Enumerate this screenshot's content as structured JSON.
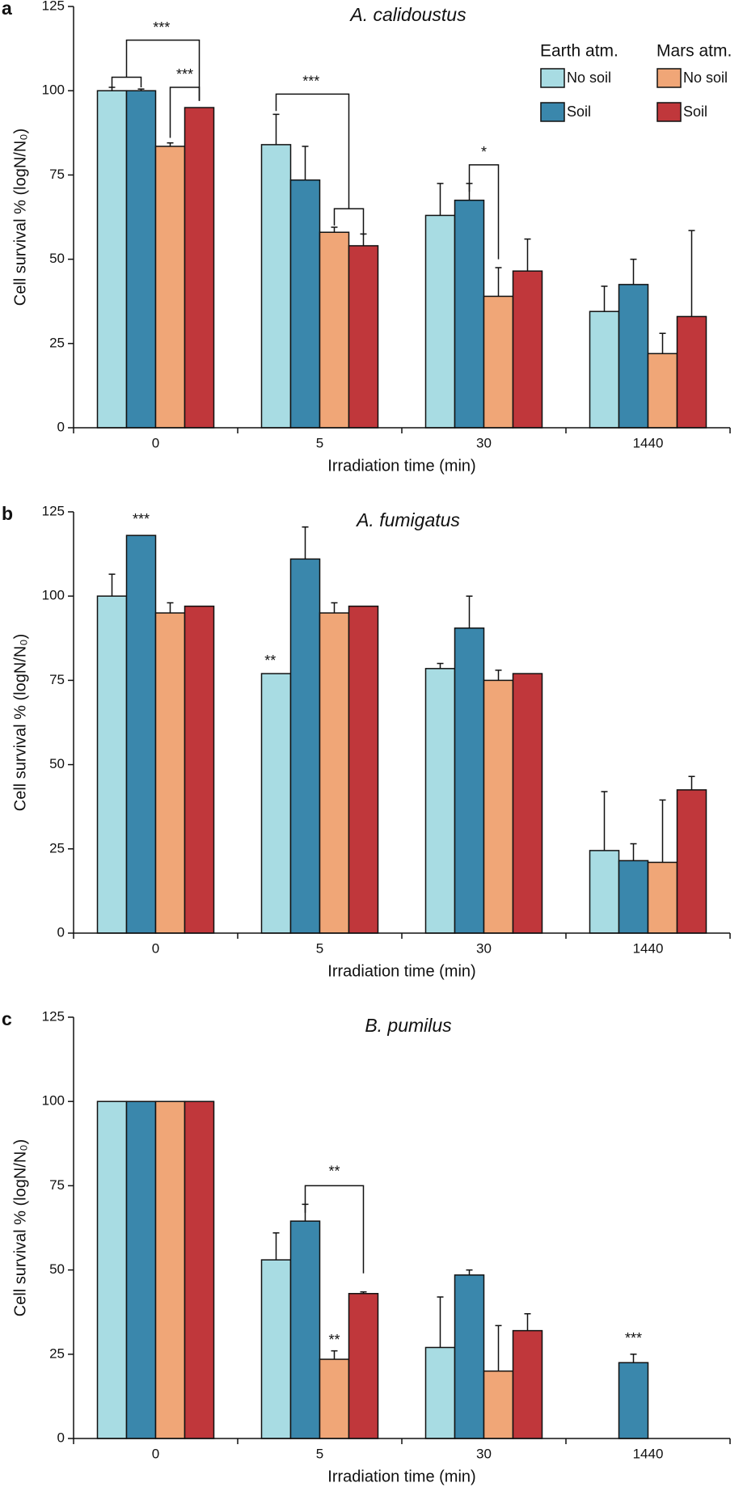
{
  "chart_data": [
    {
      "type": "bar",
      "panel": "a",
      "title": "A. calidoustus",
      "x_label": "Irradiation time (min)",
      "y_label": "Cell survival % (logN/N₀)",
      "categories": [
        "0",
        "5",
        "30",
        "1440"
      ],
      "legend_groups": [
        "Earth atm.",
        "Mars atm."
      ],
      "series": [
        {
          "name": "No soil",
          "color": "#a8dce3",
          "values": [
            100,
            84,
            63,
            34.5
          ],
          "errors": [
            1,
            9,
            9.5,
            7.5
          ]
        },
        {
          "name": "Soil",
          "color": "#3a87ac",
          "values": [
            100,
            73.5,
            67.5,
            42.5
          ],
          "errors": [
            0.5,
            10,
            5,
            7.5
          ]
        },
        {
          "name": "No soil",
          "color": "#f0a677",
          "values": [
            83.5,
            58,
            39,
            22
          ],
          "errors": [
            1,
            1.5,
            8.5,
            6
          ]
        },
        {
          "name": "Soil",
          "color": "#c0373b",
          "values": [
            95,
            54,
            46.5,
            33
          ],
          "errors": [
            null,
            3.5,
            9.5,
            25.5
          ]
        }
      ],
      "annotations": [
        "***",
        "***",
        "***",
        "*"
      ],
      "ylim": [
        0,
        125
      ],
      "yticks": [
        0,
        25,
        50,
        75,
        100,
        125
      ]
    },
    {
      "type": "bar",
      "panel": "b",
      "title": "A.  fumigatus",
      "x_label": "Irradiation time (min)",
      "y_label": "Cell survival % (logN/N₀)",
      "categories": [
        "0",
        "5",
        "30",
        "1440"
      ],
      "series": [
        {
          "color": "#a8dce3",
          "values": [
            100,
            77,
            78.5,
            24.5
          ],
          "errors": [
            6.5,
            null,
            1.5,
            17.5
          ]
        },
        {
          "color": "#3a87ac",
          "values": [
            118,
            111,
            90.5,
            21.5
          ],
          "errors": [
            null,
            9.5,
            9.5,
            5
          ]
        },
        {
          "color": "#f0a677",
          "values": [
            95,
            95,
            75,
            21
          ],
          "errors": [
            3,
            3,
            3,
            18.5
          ]
        },
        {
          "color": "#c0373b",
          "values": [
            97,
            97,
            77,
            42.5
          ],
          "errors": [
            null,
            null,
            null,
            4
          ]
        }
      ],
      "annotations": [
        "***",
        "**"
      ],
      "ylim": [
        0,
        125
      ],
      "yticks": [
        0,
        25,
        50,
        75,
        100,
        125
      ]
    },
    {
      "type": "bar",
      "panel": "c",
      "title": "B. pumilus",
      "x_label": "Irradiation time (min)",
      "y_label": "Cell survival % (logN/N₀)",
      "categories": [
        "0",
        "5",
        "30",
        "1440"
      ],
      "series": [
        {
          "color": "#a8dce3",
          "values": [
            100,
            53,
            27,
            null
          ],
          "errors": [
            null,
            8,
            15,
            null
          ]
        },
        {
          "color": "#3a87ac",
          "values": [
            100,
            64.5,
            48.5,
            22.5
          ],
          "errors": [
            null,
            5,
            1.5,
            2.5
          ]
        },
        {
          "color": "#f0a677",
          "values": [
            100,
            23.5,
            20,
            null
          ],
          "errors": [
            null,
            2.5,
            13.5,
            null
          ]
        },
        {
          "color": "#c0373b",
          "values": [
            100,
            43,
            32,
            null
          ],
          "errors": [
            null,
            0.5,
            5,
            null
          ]
        }
      ],
      "annotations": [
        "**",
        "**",
        "***"
      ],
      "ylim": [
        0,
        125
      ],
      "yticks": [
        0,
        25,
        50,
        75,
        100,
        125
      ]
    }
  ]
}
